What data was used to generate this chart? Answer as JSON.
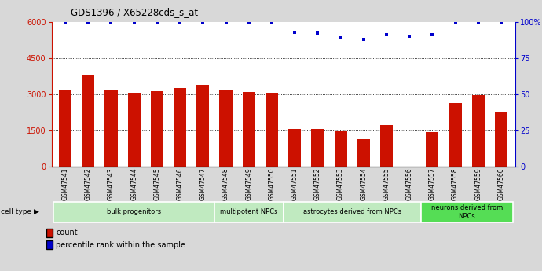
{
  "title": "GDS1396 / X65228cds_s_at",
  "samples": [
    "GSM47541",
    "GSM47542",
    "GSM47543",
    "GSM47544",
    "GSM47545",
    "GSM47546",
    "GSM47547",
    "GSM47548",
    "GSM47549",
    "GSM47550",
    "GSM47551",
    "GSM47552",
    "GSM47553",
    "GSM47554",
    "GSM47555",
    "GSM47556",
    "GSM47557",
    "GSM47558",
    "GSM47559",
    "GSM47560"
  ],
  "bar_values": [
    3150,
    3800,
    3150,
    3020,
    3130,
    3250,
    3380,
    3150,
    3100,
    3030,
    1580,
    1570,
    1480,
    1130,
    1720,
    5,
    1430,
    2650,
    2950,
    2250
  ],
  "percentile_pct": [
    99,
    99,
    99,
    99,
    99,
    99,
    99,
    99,
    99,
    99,
    93,
    92,
    89,
    88,
    91,
    90,
    91,
    99,
    99,
    99
  ],
  "bar_color": "#cc1100",
  "dot_color": "#0000cc",
  "background_color": "#d8d8d8",
  "plot_bg_color": "#ffffff",
  "group_info": [
    {
      "label": "bulk progenitors",
      "start": 0,
      "end": 7,
      "color": "#c0eac0"
    },
    {
      "label": "multipotent NPCs",
      "start": 7,
      "end": 10,
      "color": "#c0eac0"
    },
    {
      "label": "astrocytes derived from NPCs",
      "start": 10,
      "end": 16,
      "color": "#c0eac0"
    },
    {
      "label": "neurons derived from\nNPCs",
      "start": 16,
      "end": 20,
      "color": "#55dd55"
    }
  ]
}
